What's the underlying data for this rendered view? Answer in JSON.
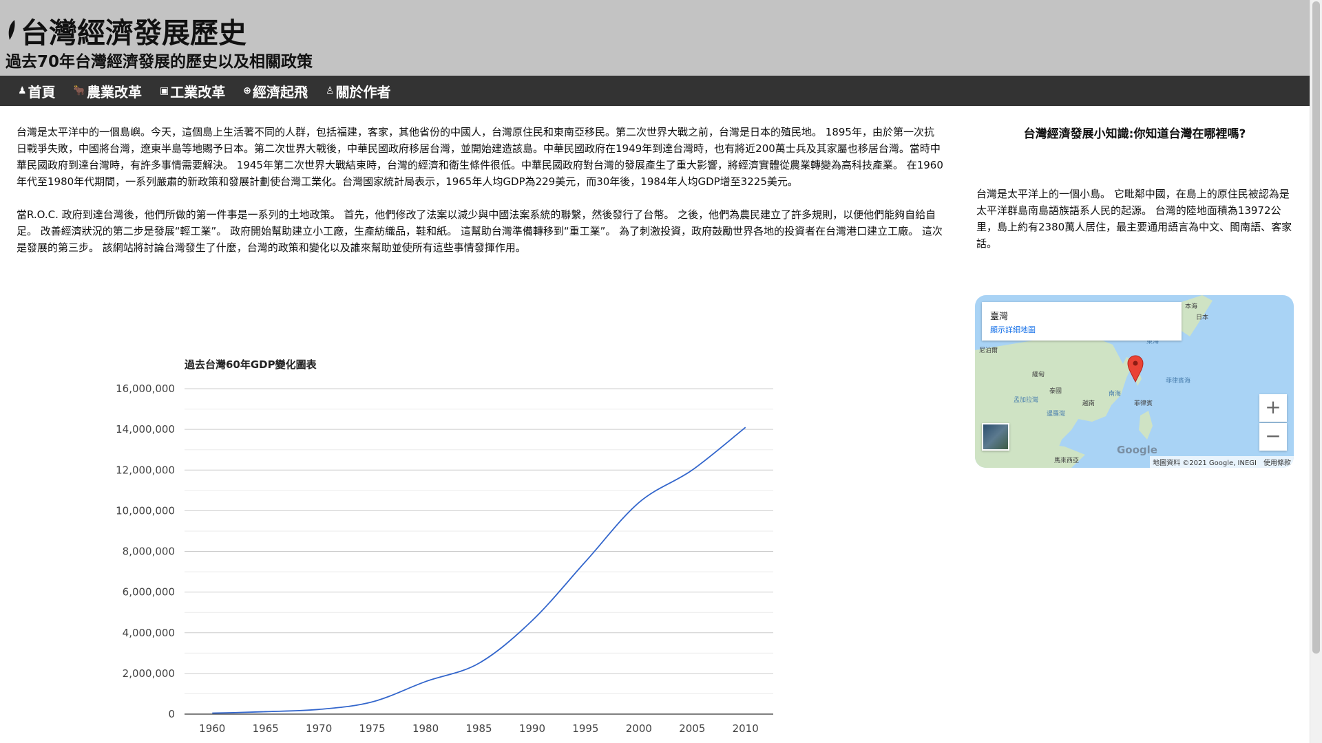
{
  "site": {
    "title": "台灣經濟發展歷史",
    "subtitle": "過去70年台灣經濟發展的歷史以及相關政策"
  },
  "nav": {
    "items": [
      {
        "icon": "home-icon",
        "glyph": "♟",
        "label": "首頁"
      },
      {
        "icon": "ox-icon",
        "glyph": "🐂",
        "label": "農業改革"
      },
      {
        "icon": "factory-icon",
        "glyph": "▣",
        "label": "工業改革"
      },
      {
        "icon": "globe-icon",
        "glyph": "⊕",
        "label": "經濟起飛"
      },
      {
        "icon": "person-icon",
        "glyph": "♙",
        "label": "關於作者"
      }
    ]
  },
  "main": {
    "paragraph_1": "台灣是太平洋中的一個島嶼。今天，這個島上生活著不同的人群，包括福建，客家，其他省份的中國人，台灣原住民和東南亞移民。第二次世界大戰之前，台灣是日本的殖民地。 1895年，由於第一次抗日戰爭失敗，中國將台灣，遼東半島等地賜予日本。第二次世界大戰後，中華民國政府移居台灣，並開始建造該島。中華民國政府在1949年到達台灣時，也有將近200萬士兵及其家屬也移居台灣。當時中華民國政府到達台灣時，有許多事情需要解決。 1945年第二次世界大戰結束時，台灣的經濟和衛生條件很低。中華民國政府對台灣的發展產生了重大影響，將經濟實體從農業轉變為高科技產業。 在1960年代至1980年代期間，一系列嚴肅的新政策和發展計劃使台灣工業化。台灣國家統計局表示，1965年人均GDP為229美元，而30年後，1984年人均GDP增至3225美元。",
    "paragraph_2": "當R.O.C. 政府到達台灣後，他們所做的第一件事是一系列的土地政策。 首先，他們修改了法案以減少與中國法案系統的聯繫，然後發行了台幣。 之後，他們為農民建立了許多規則，以便他們能夠自給自足。 改善經濟狀況的第二步是發展“輕工業”。 政府開始幫助建立小工廠，生產紡織品，鞋和紙。 這幫助台灣準備轉移到“重工業”。 為了刺激投資，政府鼓勵世界各地的投資者在台灣港口建立工廠。 這次是發展的第三步。 該網站將討論台灣發生了什麼，台灣的政策和變化以及誰來幫助並使所有這些事情發揮作用。"
  },
  "sidebar": {
    "title": "台灣經濟發展小知識:你知道台灣在哪裡嗎?",
    "text": "台灣是太平洋上的一個小島。 它毗鄰中國，在島上的原住民被認為是太平洋群島南島語族語系人民的起源。 台灣的陸地面積為13972公里，島上約有2380萬人居住，最主要通用語言為中文、閩南語、客家話。"
  },
  "map": {
    "place_name": "臺灣",
    "detail_link": "顯示詳細地圖",
    "zoom_in": "+",
    "zoom_out": "−",
    "logo": "Google",
    "attribution": "地圖資料 ©2021 Google, INEGI　使用條款",
    "labels": [
      "本海",
      "日本",
      "東海",
      "尼泊爾",
      "緬甸",
      "菲律賓海",
      "泰國",
      "南海",
      "越南",
      "菲律賓",
      "孟加拉灣",
      "暹羅灣",
      "馬來西亞"
    ],
    "pin_color": "#ea4335",
    "water_color": "#a9d3f5",
    "land_color": "#cfe3c4"
  },
  "chart_data": {
    "type": "line",
    "title": "過去台灣60年GDP變化圖表",
    "x": [
      1960,
      1962,
      1965,
      1970,
      1975,
      1980,
      1985,
      1990,
      1995,
      2000,
      2005,
      2010
    ],
    "series": [
      {
        "values": [
          50000,
          70000,
          120000,
          230000,
          600000,
          1600000,
          2500000,
          4600000,
          7500000,
          10400000,
          12000000,
          14100000
        ]
      }
    ],
    "x_ticks": [
      "1960",
      "1965",
      "1970",
      "1975",
      "1980",
      "1985",
      "1990",
      "1995",
      "2000",
      "2005",
      "2010"
    ],
    "y_ticks": [
      "0",
      "2,000,000",
      "4,000,000",
      "6,000,000",
      "8,000,000",
      "10,000,000",
      "12,000,000",
      "14,000,000",
      "16,000,000"
    ],
    "ylim": [
      0,
      16000000
    ],
    "xlim": [
      1957.4,
      2012.6
    ],
    "grid": true,
    "line_color": "#3366cc"
  }
}
